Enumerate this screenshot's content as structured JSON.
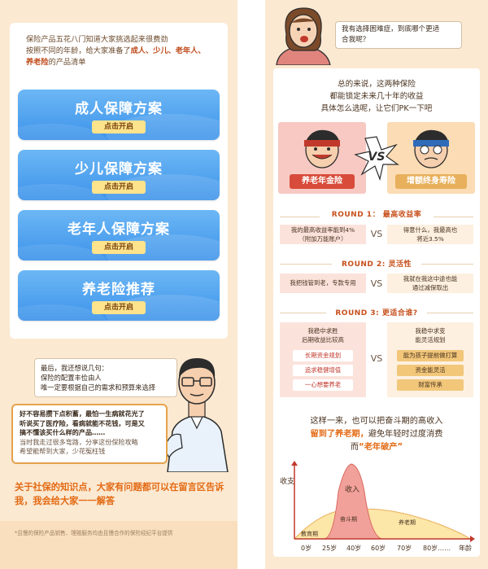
{
  "left": {
    "intro_lines": [
      "保险产品五花八门知道大家挑选起来很费劲",
      "按照不同的年龄，给大家准备了"
    ],
    "intro_highlights": [
      "成人、少儿、老年人、",
      "养老险"
    ],
    "intro_tail": "的产品清单",
    "plans": [
      {
        "title": "成人保障方案",
        "button": "点击开启"
      },
      {
        "title": "少儿保障方案",
        "button": "点击开启"
      },
      {
        "title": "老年人保障方案",
        "button": "点击开启"
      },
      {
        "title": "养老险推荐",
        "button": "点击开启"
      }
    ],
    "bubble_lines": [
      "最后，我还想说几句：",
      "保险的配置丰俭由人",
      "唯一定要根据自己的需求和预算来选择"
    ],
    "bubble2_bold": [
      "好不容易攒下点积蓄，最怕一生病就花光了",
      "听说买了医疗险，看病就能不花钱，可是又",
      "搞不懂该买什么样的产品……"
    ],
    "bubble2_muted": [
      "当时我走过很多弯路，分享这份保险攻略",
      "希望能帮到大家，少花冤枉钱"
    ],
    "outro": "关于社保的知识点，大家有问题都可以在留言区告诉我，我会给大家一一解答",
    "footnote": "*且慢的保险产品销售、理赔服务均由且慢合作的保险经纪平台提供"
  },
  "right": {
    "question_lines": [
      "我有选择困难症，到底哪个更适",
      "合我呢？"
    ],
    "intro_lines": [
      "总的来说，这两种保险",
      "都能锁定未来几十年的收益",
      "具体怎么选呢，让它们PK一下吧"
    ],
    "left_fighter": "养老年金险",
    "right_fighter": "增额终身寿险",
    "vs_big": "VS",
    "vs_small": "VS",
    "rounds": [
      {
        "title": "ROUND 1： 最高收益率",
        "left": [
          "我的最高收益率能到4%",
          "（附加万能账户）"
        ],
        "right": [
          "得意什么，我最高也",
          "将近3.5%"
        ]
      },
      {
        "title": "ROUND 2: 灵活性",
        "left": [
          "我把钱管到老，专款专用"
        ],
        "right": [
          "我就在我这中途也能",
          "通过减保取出"
        ]
      },
      {
        "title": "ROUND 3: 更适合谁?",
        "left_head": [
          "我稳中求胜",
          "后期收益比较高"
        ],
        "left_pills": [
          "长期资金规划",
          "追求稳健增值",
          "一心想要养老"
        ],
        "right_head": [
          "我稳中求变",
          "能灵活规划"
        ],
        "right_pills": [
          "能为孩子提前做打算",
          "资金能灵活",
          "财富传承"
        ]
      }
    ],
    "summary_lines": [
      "这样一来，也可以把奋斗期的高收入",
      "留到了养老期，避免年轻时过度消费",
      "而“老年破产”"
    ],
    "summary_highlight": [
      "留到了养老期，",
      "“老年破产”"
    ],
    "chart": {
      "ylabel": "收支",
      "xlabel": "年龄",
      "ticks": [
        "0岁",
        "25岁",
        "40岁",
        "60岁",
        "70岁",
        "80岁……"
      ],
      "regions": [
        "收入",
        "教育期",
        "奋斗期",
        "养老期"
      ],
      "colors": {
        "income": "#f2a09a",
        "spend": "#fce6a8",
        "axis": "#c0392b"
      }
    }
  }
}
